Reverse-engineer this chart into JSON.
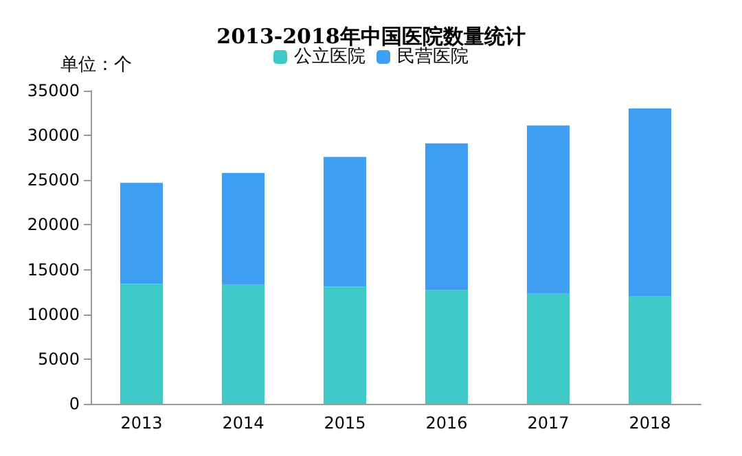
{
  "chart_data": {
    "type": "bar",
    "title": "2013-2018年中国医院数量统计",
    "ylabel": "单位：个",
    "categories": [
      "2013",
      "2014",
      "2015",
      "2016",
      "2017",
      "2018"
    ],
    "stacked": true,
    "series": [
      {
        "name": "公立医院",
        "color": "#3ec8c6",
        "values": [
          13400,
          13300,
          13100,
          12700,
          12300,
          12000
        ]
      },
      {
        "name": "民营医院",
        "color": "#3d9ef2",
        "values": [
          11300,
          12500,
          14500,
          16400,
          18800,
          21000
        ]
      }
    ],
    "ylim": [
      0,
      35000
    ],
    "yticks": [
      0,
      5000,
      10000,
      15000,
      20000,
      25000,
      30000,
      35000
    ],
    "grid": false,
    "legend": "top"
  }
}
